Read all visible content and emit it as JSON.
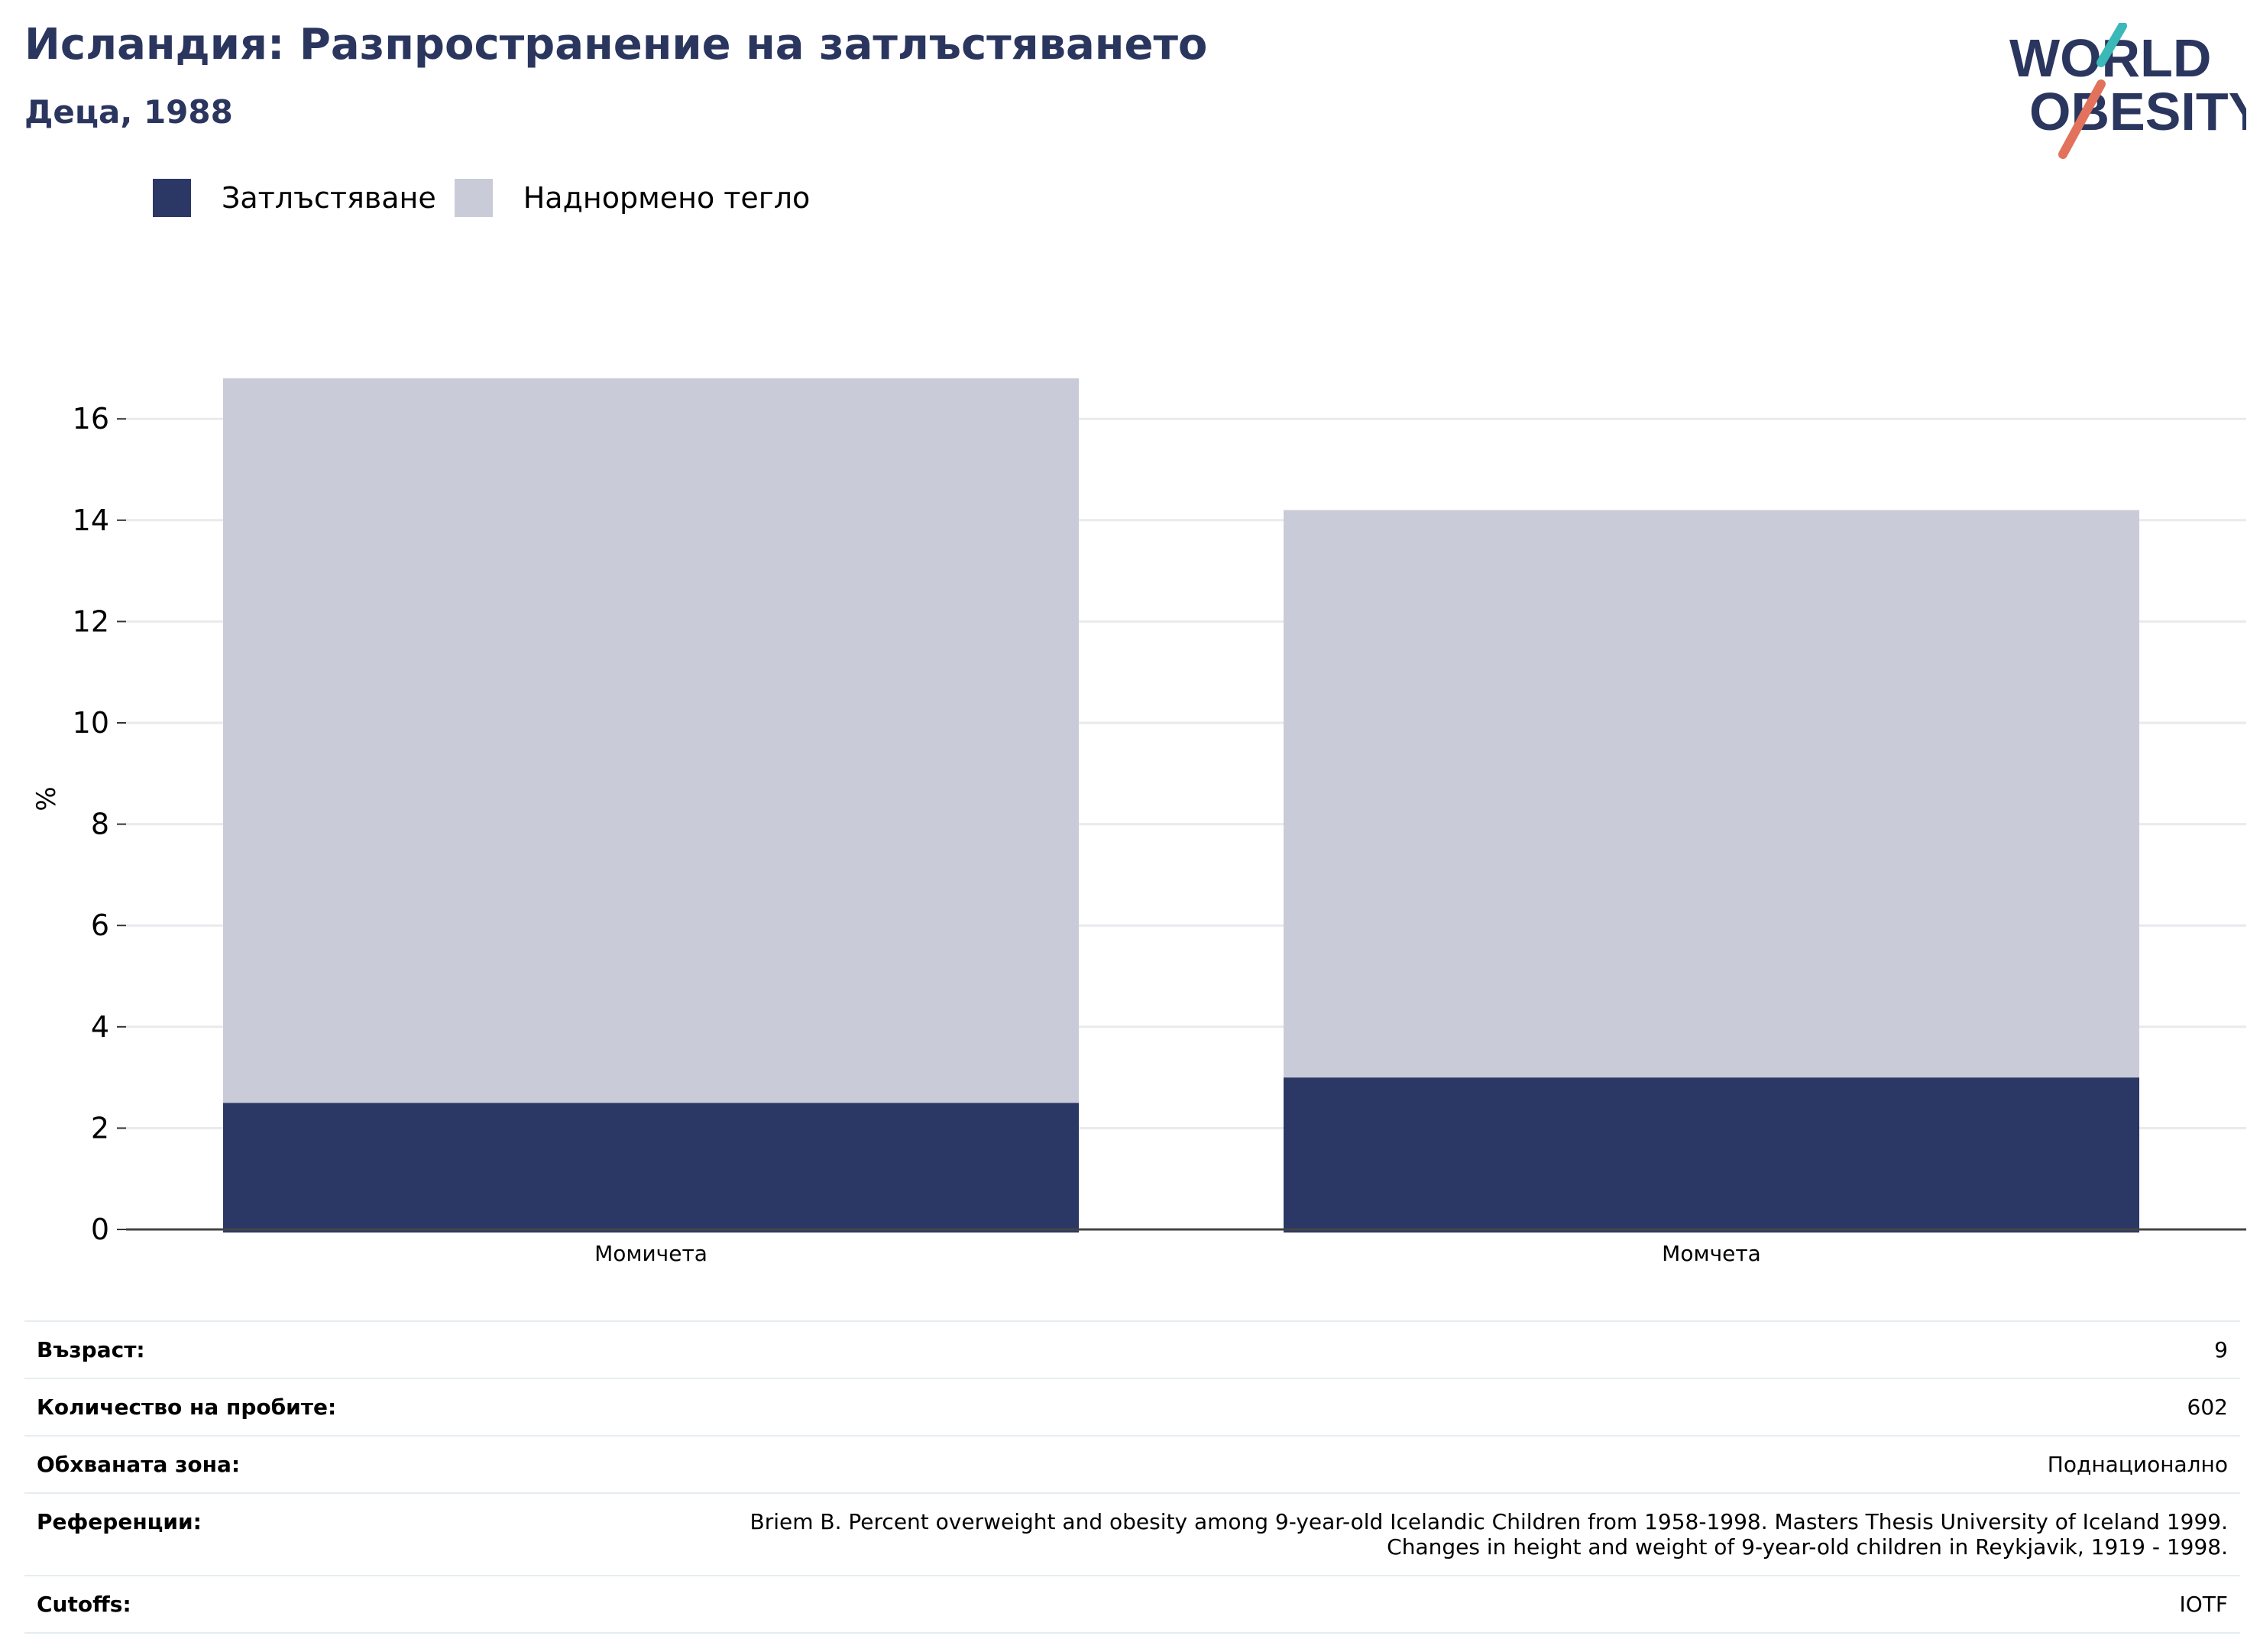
{
  "header": {
    "title": "Исландия: Разпространение на затлъстяването",
    "subtitle": "Деца, 1988"
  },
  "logo": {
    "line1": "WORLD",
    "line2": "OBESITY"
  },
  "colors": {
    "obesity": "#2b3765",
    "overweight": "#c9ccd8",
    "title": "#2b365f",
    "logo_teal": "#3bb8b8",
    "logo_red": "#e2725b"
  },
  "legend": [
    {
      "label": "Затлъстяване",
      "color": "#2b3765"
    },
    {
      "label": "Наднормено тегло",
      "color": "#c9ccd8"
    }
  ],
  "chart_data": {
    "type": "bar",
    "stacked": true,
    "categories": [
      "Момичета",
      "Момчета"
    ],
    "series": [
      {
        "name": "Затлъстяване",
        "values": [
          2.5,
          3.0
        ]
      },
      {
        "name": "Наднормено тегло",
        "values": [
          14.3,
          11.2
        ]
      }
    ],
    "ylabel": "%",
    "ylim": [
      0,
      17
    ],
    "yticks": [
      0,
      2,
      4,
      6,
      8,
      10,
      12,
      14,
      16
    ],
    "grid": true,
    "legend_position": "top-left"
  },
  "info": [
    {
      "key": "Възраст:",
      "value": [
        "9"
      ]
    },
    {
      "key": "Количество на пробите:",
      "value": [
        "602"
      ]
    },
    {
      "key": "Обхваната зона:",
      "value": [
        "Поднационално"
      ]
    },
    {
      "key": "Референции:",
      "value": [
        "Briem B. Percent overweight and obesity among 9-year-old Icelandic Children from 1958-1998. Masters Thesis University of Iceland 1999.",
        "Changes in height and weight of 9-year-old children in Reykjavik, 1919 - 1998."
      ]
    },
    {
      "key": "Cutoffs:",
      "value": [
        "IOTF"
      ]
    }
  ]
}
